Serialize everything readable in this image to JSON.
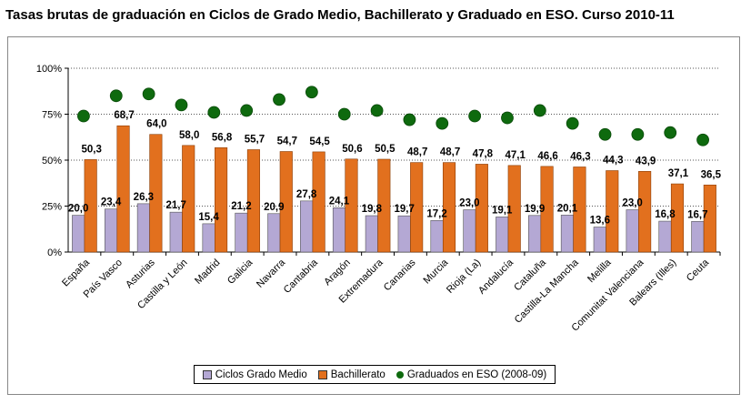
{
  "chart_data": {
    "type": "bar",
    "title": "Tasas brutas de graduación en Ciclos de Grado Medio, Bachillerato y Graduado en ESO. Curso 2010-11",
    "categories": [
      "España",
      "País Vasco",
      "Asturias",
      "Castilla y León",
      "Madrid",
      "Galicia",
      "Navarra",
      "Cantabria",
      "Aragón",
      "Extremadura",
      "Canarias",
      "Murcia",
      "Rioja (La)",
      "Andalucía",
      "Cataluña",
      "Castilla-La Mancha",
      "Melilla",
      "Comunitat Valenciana",
      "Balears (Illes)",
      "Ceuta"
    ],
    "ylim": [
      0,
      100
    ],
    "yticks": [
      "0%",
      "25%",
      "50%",
      "75%",
      "100%"
    ],
    "grid": true,
    "legend_position": "bottom",
    "series": [
      {
        "name": "Ciclos Grado Medio",
        "type": "bar",
        "color": "#B4A8D4",
        "values": [
          20.0,
          23.4,
          26.3,
          21.7,
          15.4,
          21.2,
          20.9,
          27.8,
          24.1,
          19.8,
          19.7,
          17.2,
          23.0,
          19.1,
          19.9,
          20.1,
          13.6,
          23.0,
          16.8,
          16.7
        ],
        "labels": [
          "20,0",
          "23,4",
          "26,3",
          "21,7",
          "15,4",
          "21,2",
          "20,9",
          "27,8",
          "24,1",
          "19,8",
          "19,7",
          "17,2",
          "23,0",
          "19,1",
          "19,9",
          "20,1",
          "13,6",
          "23,0",
          "16,8",
          "16,7"
        ]
      },
      {
        "name": "Bachillerato",
        "type": "bar",
        "color": "#E2701E",
        "values": [
          50.3,
          68.7,
          64.0,
          58.0,
          56.8,
          55.7,
          54.7,
          54.5,
          50.6,
          50.5,
          48.7,
          48.7,
          47.8,
          47.1,
          46.6,
          46.3,
          44.3,
          43.9,
          37.1,
          36.5
        ],
        "labels": [
          "50,3",
          "68,7",
          "64,0",
          "58,0",
          "56,8",
          "55,7",
          "54,7",
          "54,5",
          "50,6",
          "50,5",
          "48,7",
          "48,7",
          "47,8",
          "47,1",
          "46,6",
          "46,3",
          "44,3",
          "43,9",
          "37,1",
          "36,5"
        ]
      },
      {
        "name": "Graduados en ESO (2008-09)",
        "type": "scatter",
        "color": "#0E6A0E",
        "values": [
          74,
          85,
          86,
          80,
          76,
          77,
          83,
          87,
          75,
          77,
          72,
          70,
          74,
          73,
          77,
          70,
          64,
          64,
          65,
          61
        ]
      }
    ]
  }
}
